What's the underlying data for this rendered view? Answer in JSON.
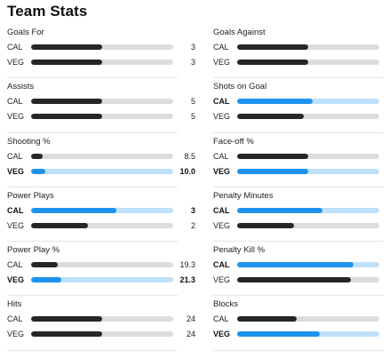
{
  "page_title": "Team Stats",
  "colors": {
    "dark": "#262626",
    "blue": "#1e93ee",
    "track": "#dcdcdc",
    "track_highlight": "#bfe0fa"
  },
  "left_stats": [
    {
      "label": "Goals For",
      "teams": [
        {
          "team": "CAL",
          "value": "3",
          "fraction": 0.5,
          "bold": false,
          "color": "dark"
        },
        {
          "team": "VEG",
          "value": "3",
          "fraction": 0.5,
          "bold": false,
          "color": "dark"
        }
      ]
    },
    {
      "label": "Assists",
      "teams": [
        {
          "team": "CAL",
          "value": "5",
          "fraction": 0.5,
          "bold": false,
          "color": "dark"
        },
        {
          "team": "VEG",
          "value": "5",
          "fraction": 0.5,
          "bold": false,
          "color": "dark"
        }
      ]
    },
    {
      "label": "Shooting %",
      "teams": [
        {
          "team": "CAL",
          "value": "8.5",
          "fraction": 0.08,
          "bold": false,
          "color": "dark"
        },
        {
          "team": "VEG",
          "value": "10.0",
          "fraction": 0.1,
          "bold": true,
          "color": "blue"
        }
      ]
    },
    {
      "label": "Power Plays",
      "teams": [
        {
          "team": "CAL",
          "value": "3",
          "fraction": 0.6,
          "bold": true,
          "color": "blue"
        },
        {
          "team": "VEG",
          "value": "2",
          "fraction": 0.4,
          "bold": false,
          "color": "dark"
        }
      ]
    },
    {
      "label": "Power Play %",
      "teams": [
        {
          "team": "CAL",
          "value": "19.3",
          "fraction": 0.19,
          "bold": false,
          "color": "dark"
        },
        {
          "team": "VEG",
          "value": "21.3",
          "fraction": 0.21,
          "bold": true,
          "color": "blue"
        }
      ]
    },
    {
      "label": "Hits",
      "teams": [
        {
          "team": "CAL",
          "value": "24",
          "fraction": 0.5,
          "bold": false,
          "color": "dark"
        },
        {
          "team": "VEG",
          "value": "24",
          "fraction": 0.5,
          "bold": false,
          "color": "dark"
        }
      ]
    }
  ],
  "right_stats": [
    {
      "label": "Goals Against",
      "teams": [
        {
          "team": "CAL",
          "value": "",
          "fraction": 0.5,
          "bold": false,
          "color": "dark"
        },
        {
          "team": "VEG",
          "value": "",
          "fraction": 0.5,
          "bold": false,
          "color": "dark"
        }
      ]
    },
    {
      "label": "Shots on Goal",
      "teams": [
        {
          "team": "CAL",
          "value": "",
          "fraction": 0.53,
          "bold": true,
          "color": "blue"
        },
        {
          "team": "VEG",
          "value": "",
          "fraction": 0.47,
          "bold": false,
          "color": "dark"
        }
      ]
    },
    {
      "label": "Face-off %",
      "teams": [
        {
          "team": "CAL",
          "value": "",
          "fraction": 0.5,
          "bold": false,
          "color": "dark"
        },
        {
          "team": "VEG",
          "value": "",
          "fraction": 0.5,
          "bold": true,
          "color": "blue"
        }
      ]
    },
    {
      "label": "Penalty Minutes",
      "teams": [
        {
          "team": "CAL",
          "value": "",
          "fraction": 0.6,
          "bold": true,
          "color": "blue"
        },
        {
          "team": "VEG",
          "value": "",
          "fraction": 0.4,
          "bold": false,
          "color": "dark"
        }
      ]
    },
    {
      "label": "Penalty Kill %",
      "teams": [
        {
          "team": "CAL",
          "value": "",
          "fraction": 0.82,
          "bold": true,
          "color": "blue"
        },
        {
          "team": "VEG",
          "value": "",
          "fraction": 0.8,
          "bold": false,
          "color": "dark"
        }
      ]
    },
    {
      "label": "Blocks",
      "teams": [
        {
          "team": "CAL",
          "value": "",
          "fraction": 0.42,
          "bold": false,
          "color": "dark"
        },
        {
          "team": "VEG",
          "value": "",
          "fraction": 0.58,
          "bold": true,
          "color": "blue"
        }
      ]
    }
  ]
}
